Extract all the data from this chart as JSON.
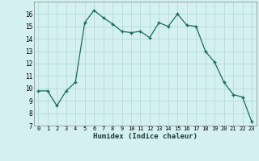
{
  "x": [
    0,
    1,
    2,
    3,
    4,
    5,
    6,
    7,
    8,
    9,
    10,
    11,
    12,
    13,
    14,
    15,
    16,
    17,
    18,
    19,
    20,
    21,
    22,
    23
  ],
  "y": [
    9.8,
    9.8,
    8.6,
    9.8,
    10.5,
    15.3,
    16.3,
    15.7,
    15.2,
    14.6,
    14.5,
    14.6,
    14.1,
    15.3,
    15.0,
    16.0,
    15.1,
    15.0,
    13.0,
    12.1,
    10.5,
    9.5,
    9.3,
    7.3
  ],
  "xlim": [
    -0.5,
    23.5
  ],
  "ylim": [
    7,
    17
  ],
  "yticks": [
    7,
    8,
    9,
    10,
    11,
    12,
    13,
    14,
    15,
    16
  ],
  "xticks": [
    0,
    1,
    2,
    3,
    4,
    5,
    6,
    7,
    8,
    9,
    10,
    11,
    12,
    13,
    14,
    15,
    16,
    17,
    18,
    19,
    20,
    21,
    22,
    23
  ],
  "xlabel": "Humidex (Indice chaleur)",
  "line_color": "#1a6b5a",
  "marker": "+",
  "marker_size": 3.0,
  "bg_color": "#d4f0f0",
  "grid_color": "#b0d8d8"
}
